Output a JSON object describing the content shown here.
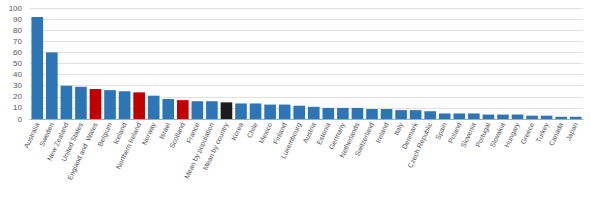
{
  "chart_data": {
    "type": "bar",
    "categories": [
      "Australia",
      "Sweden",
      "New Zealand",
      "United States",
      "England and  Wales",
      "Belgium",
      "Iceland",
      "Northern Ireland",
      "Norway",
      "Israel",
      "Scotland",
      "France",
      "Mean by population",
      "Mean by country",
      "Korea",
      "Chile",
      "Mexico",
      "Finland",
      "Luxembourg",
      "Austria",
      "Estonia",
      "Germany",
      "Netherlands",
      "Switzerland",
      "Ireland",
      "Italy",
      "Denmark",
      "Czech Republic",
      "Spain",
      "Poland",
      "Slovenia",
      "Portugal",
      "Slovakia",
      "Hungary",
      "Greece",
      "Turkey",
      "Canada",
      "Japan"
    ],
    "values": [
      92,
      60,
      30,
      29,
      27,
      26,
      25,
      24,
      21,
      18,
      17,
      16,
      16,
      15,
      14,
      14,
      13,
      13,
      12,
      11,
      10,
      10,
      10,
      9,
      9,
      8,
      8,
      7,
      5,
      5,
      5,
      4,
      4,
      4,
      3,
      3,
      2,
      2
    ],
    "colors": [
      "#2E75B6",
      "#2E75B6",
      "#2E75B6",
      "#2E75B6",
      "#C00000",
      "#2E75B6",
      "#2E75B6",
      "#C00000",
      "#2E75B6",
      "#2E75B6",
      "#C00000",
      "#2E75B6",
      "#2E75B6",
      "#1C1C1C",
      "#2E75B6",
      "#2E75B6",
      "#2E75B6",
      "#2E75B6",
      "#2E75B6",
      "#2E75B6",
      "#2E75B6",
      "#2E75B6",
      "#2E75B6",
      "#2E75B6",
      "#2E75B6",
      "#2E75B6",
      "#2E75B6",
      "#2E75B6",
      "#2E75B6",
      "#2E75B6",
      "#2E75B6",
      "#2E75B6",
      "#2E75B6",
      "#2E75B6",
      "#2E75B6",
      "#2E75B6",
      "#2E75B6",
      "#2E75B6"
    ],
    "ylim": [
      0,
      100
    ],
    "yticks": [
      0,
      10,
      20,
      30,
      40,
      50,
      60,
      70,
      80,
      90,
      100
    ],
    "grid": true
  }
}
